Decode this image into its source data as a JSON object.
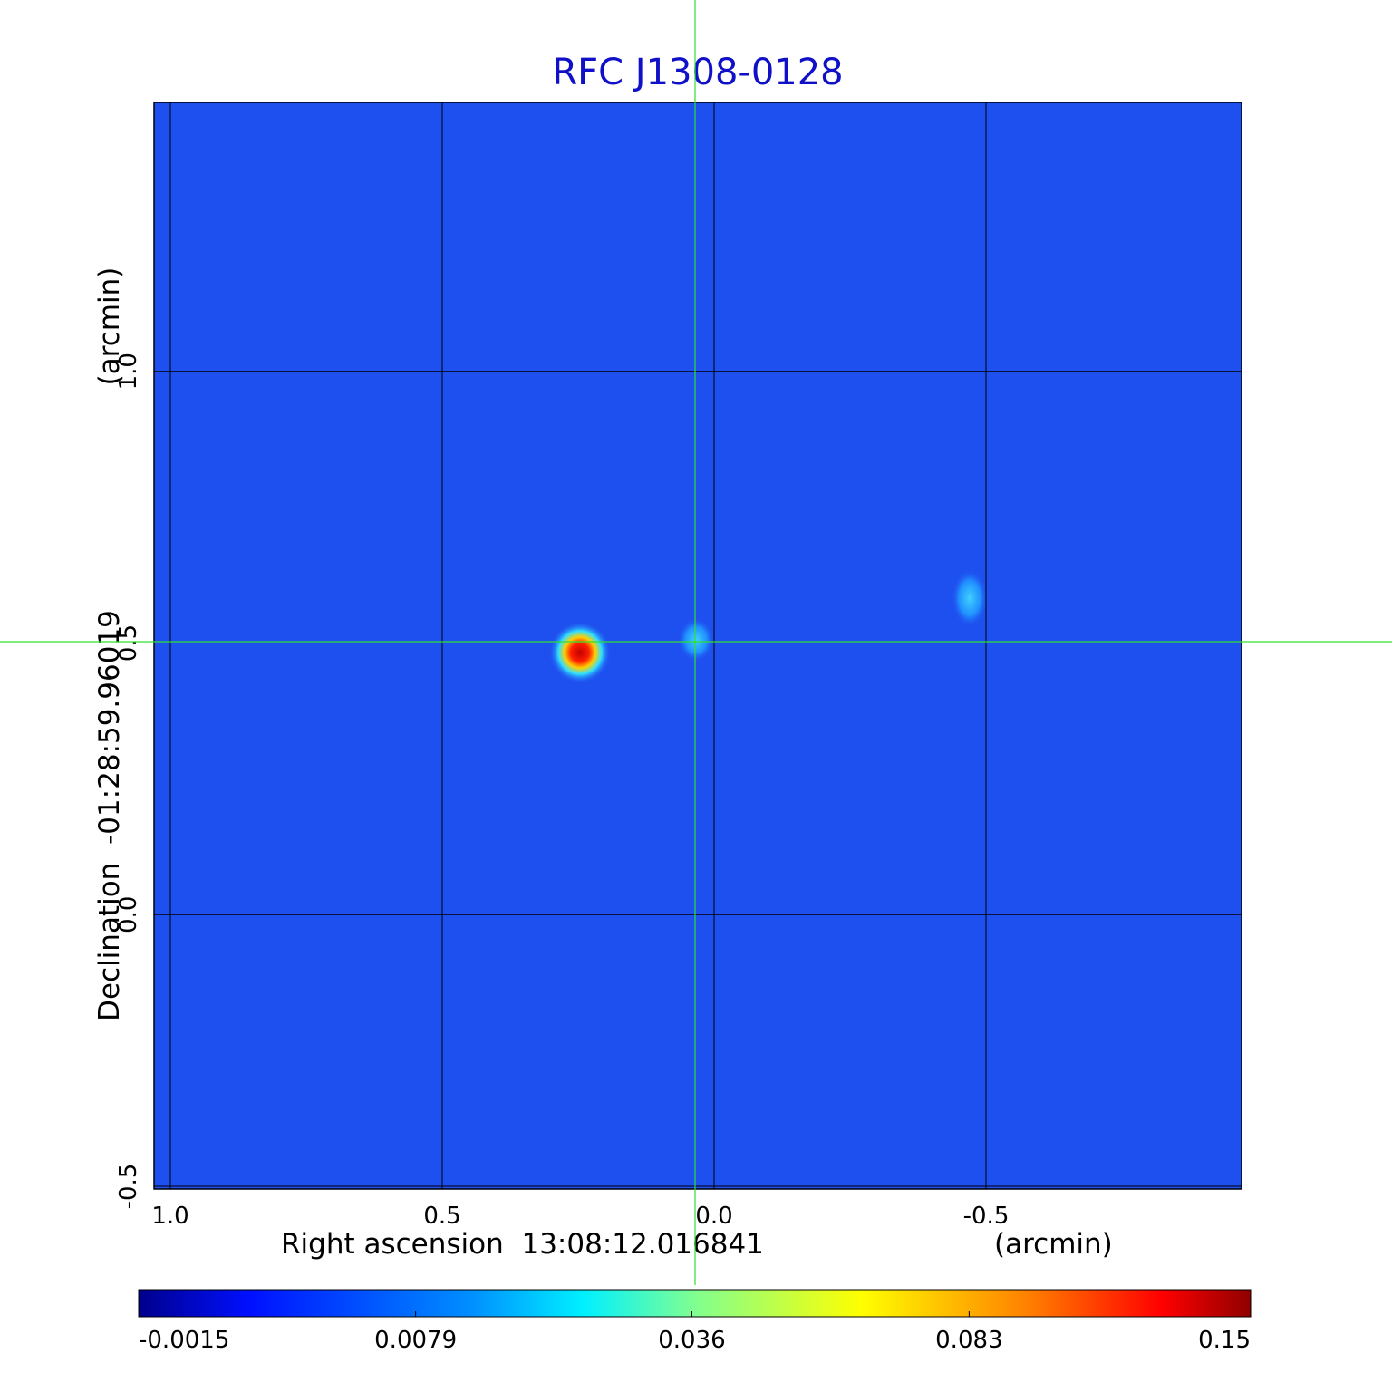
{
  "chart_data": {
    "type": "image",
    "title": "RFC J1308-0128",
    "xlabel": "Right ascension  13:08:12.016841",
    "xunit": "(arcmin)",
    "ylabel": "Declination  -01:28:59.96019",
    "yunit": "(arcmin)",
    "xlim": [
      1.03,
      -0.97
    ],
    "xticks": [
      {
        "value": 1,
        "label": "1.0"
      },
      0.5,
      {
        "value": 0,
        "label": "0.0"
      },
      -0.5
    ],
    "ylim": [
      -0.505,
      1.495
    ],
    "yticks": [
      -0.5,
      {
        "value": 0,
        "label": "0.0"
      },
      0.5,
      {
        "value": 1,
        "label": "1.0"
      }
    ],
    "grid": true,
    "colorbar": {
      "lim": [
        -0.0015,
        0.15
      ],
      "scale": "sqrt",
      "ticks": [
        -0.0015,
        0.0079,
        0.036,
        0.083,
        0.15
      ]
    }
  }
}
